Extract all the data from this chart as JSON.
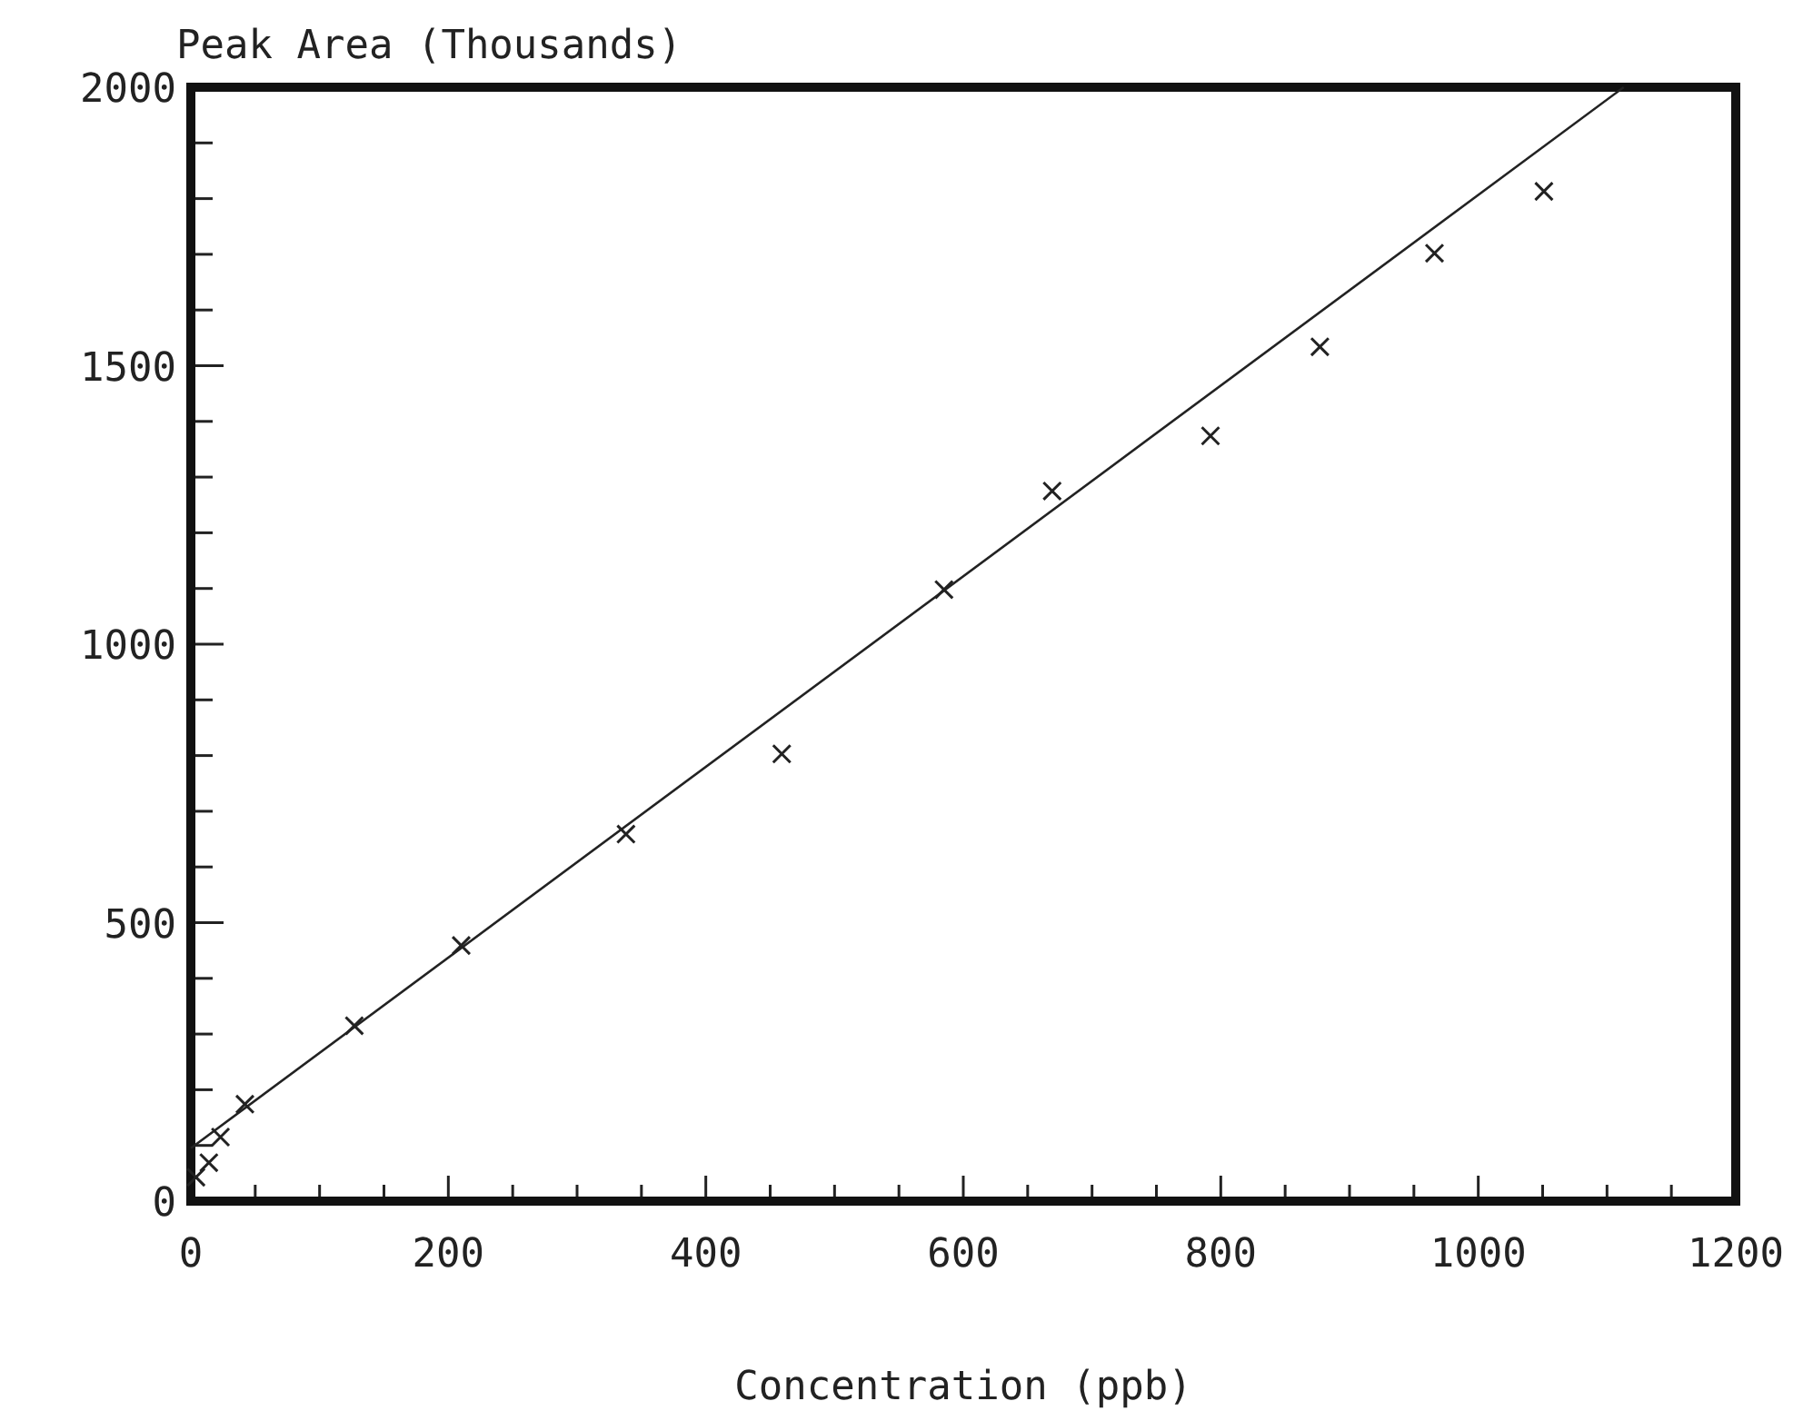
{
  "chart_data": {
    "type": "scatter",
    "ylabel": "Peak Area (Thousands)",
    "xlabel": "Concentration (ppb)",
    "xlim": [
      0,
      1200
    ],
    "ylim": [
      0,
      2000
    ],
    "xticks": [
      0,
      {
        "value": 50,
        "label": null
      },
      {
        "value": 100,
        "label": null
      },
      {
        "value": 150,
        "label": null
      },
      200,
      {
        "value": 250,
        "label": null
      },
      {
        "value": 300,
        "label": null
      },
      {
        "value": 350,
        "label": null
      },
      400,
      {
        "value": 450,
        "label": null
      },
      {
        "value": 500,
        "label": null
      },
      {
        "value": 550,
        "label": null
      },
      600,
      {
        "value": 650,
        "label": null
      },
      {
        "value": 700,
        "label": null
      },
      {
        "value": 750,
        "label": null
      },
      800,
      {
        "value": 850,
        "label": null
      },
      {
        "value": 900,
        "label": null
      },
      {
        "value": 950,
        "label": null
      },
      1000,
      {
        "value": 1050,
        "label": null
      },
      {
        "value": 1100,
        "label": null
      },
      {
        "value": 1150,
        "label": null
      },
      1200
    ],
    "yticks": [
      0,
      {
        "value": 100,
        "label": null
      },
      {
        "value": 200,
        "label": null
      },
      {
        "value": 300,
        "label": null
      },
      {
        "value": 400,
        "label": null
      },
      500,
      {
        "value": 600,
        "label": null
      },
      {
        "value": 700,
        "label": null
      },
      {
        "value": 800,
        "label": null
      },
      {
        "value": 900,
        "label": null
      },
      1000,
      {
        "value": 1100,
        "label": null
      },
      {
        "value": 1200,
        "label": null
      },
      {
        "value": 1300,
        "label": null
      },
      {
        "value": 1400,
        "label": null
      },
      1500,
      {
        "value": 1600,
        "label": null
      },
      {
        "value": 1700,
        "label": null
      },
      {
        "value": 1800,
        "label": null
      },
      {
        "value": 1900,
        "label": null
      },
      2000
    ],
    "grid": false,
    "series": [
      {
        "marker": "cross",
        "color": "#222222",
        "x": [
          4,
          14,
          23,
          42,
          127,
          210,
          338,
          459,
          585,
          669,
          792,
          877,
          966,
          1051
        ],
        "values": [
          43,
          69,
          115,
          174,
          315,
          459,
          659,
          803,
          1098,
          1275,
          1374,
          1534,
          1702,
          1813
        ]
      },
      {
        "type": "line",
        "marker": "none",
        "color": "#222222",
        "line_style": "solid",
        "x": [
          0,
          1113
        ],
        "values": [
          95,
          2000
        ]
      }
    ]
  }
}
